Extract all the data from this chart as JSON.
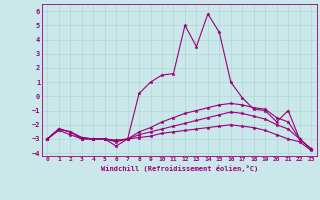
{
  "xlabel": "Windchill (Refroidissement éolien,°C)",
  "background_color": "#cae8ea",
  "grid_color": "#aad4d4",
  "line_color": "#990077",
  "xlim": [
    -0.5,
    23.5
  ],
  "ylim": [
    -4.2,
    6.5
  ],
  "xticks": [
    0,
    1,
    2,
    3,
    4,
    5,
    6,
    7,
    8,
    9,
    10,
    11,
    12,
    13,
    14,
    15,
    16,
    17,
    18,
    19,
    20,
    21,
    22,
    23
  ],
  "yticks": [
    -4,
    -3,
    -2,
    -1,
    0,
    1,
    2,
    3,
    4,
    5,
    6
  ],
  "s1": [
    -3,
    -2.3,
    -2.5,
    -3.0,
    -3.0,
    -3.0,
    -3.5,
    -3.0,
    0.2,
    1.0,
    1.5,
    1.6,
    5.0,
    3.5,
    5.8,
    4.5,
    1.0,
    -0.1,
    -0.9,
    -1.0,
    -1.8,
    -1.0,
    -3.0,
    -3.7
  ],
  "s2": [
    -3,
    -2.3,
    -2.5,
    -2.9,
    -3.0,
    -3.0,
    -3.1,
    -3.0,
    -2.5,
    -2.2,
    -1.8,
    -1.5,
    -1.2,
    -1.0,
    -0.8,
    -0.6,
    -0.5,
    -0.6,
    -0.8,
    -0.9,
    -1.5,
    -1.8,
    -3.0,
    -3.7
  ],
  "s3": [
    -3,
    -2.3,
    -2.5,
    -2.9,
    -3.0,
    -3.0,
    -3.1,
    -3.0,
    -2.7,
    -2.5,
    -2.3,
    -2.1,
    -1.9,
    -1.7,
    -1.5,
    -1.3,
    -1.1,
    -1.2,
    -1.4,
    -1.6,
    -2.0,
    -2.3,
    -3.0,
    -3.7
  ],
  "s4": [
    -3,
    -2.4,
    -2.7,
    -3.0,
    -3.0,
    -3.0,
    -3.2,
    -3.0,
    -2.9,
    -2.8,
    -2.6,
    -2.5,
    -2.4,
    -2.3,
    -2.2,
    -2.1,
    -2.0,
    -2.1,
    -2.2,
    -2.4,
    -2.7,
    -3.0,
    -3.2,
    -3.8
  ]
}
